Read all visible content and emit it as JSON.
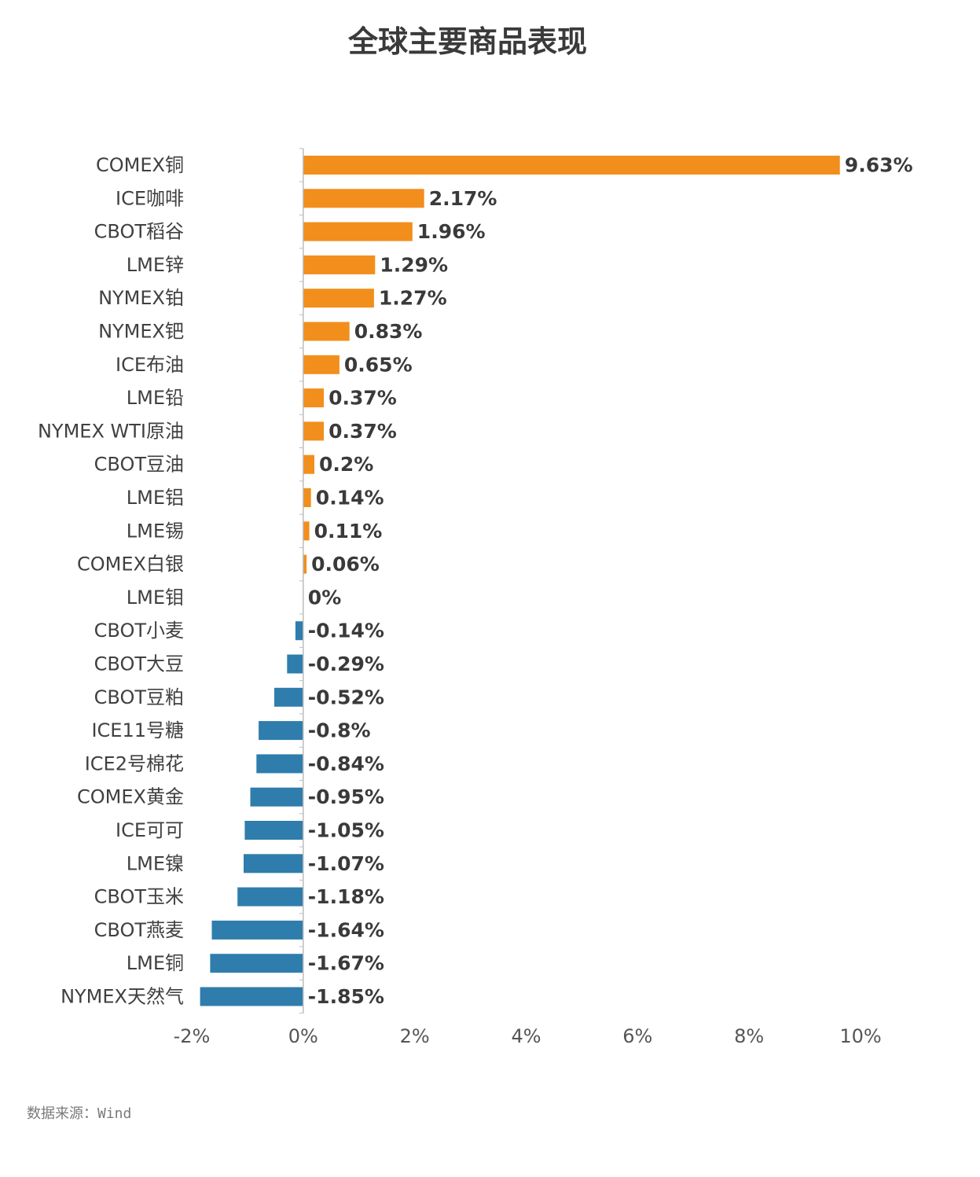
{
  "title": "全球主要商品表现",
  "source": "数据来源：Wind",
  "chart_data": {
    "type": "bar",
    "orientation": "horizontal",
    "title": "全球主要商品表现",
    "xlim": [
      -2,
      10
    ],
    "x_ticks": [
      -2,
      0,
      2,
      4,
      6,
      8,
      10
    ],
    "x_tick_labels": [
      "-2%",
      "0%",
      "2%",
      "4%",
      "6%",
      "8%",
      "10%"
    ],
    "colors": {
      "positive": "#f28e1c",
      "negative": "#2e7dac"
    },
    "categories": [
      "COMEX铜",
      "ICE咖啡",
      "CBOT稻谷",
      "LME锌",
      "NYMEX铂",
      "NYMEX钯",
      "ICE布油",
      "LME铅",
      "NYMEX WTI原油",
      "CBOT豆油",
      "LME铝",
      "LME锡",
      "COMEX白银",
      "LME钼",
      "CBOT小麦",
      "CBOT大豆",
      "CBOT豆粕",
      "ICE11号糖",
      "ICE2号棉花",
      "COMEX黄金",
      "ICE可可",
      "LME镍",
      "CBOT玉米",
      "CBOT燕麦",
      "LME铜",
      "NYMEX天然气"
    ],
    "values": [
      9.63,
      2.17,
      1.96,
      1.29,
      1.27,
      0.83,
      0.65,
      0.37,
      0.37,
      0.2,
      0.14,
      0.11,
      0.06,
      0,
      -0.14,
      -0.29,
      -0.52,
      -0.8,
      -0.84,
      -0.95,
      -1.05,
      -1.07,
      -1.18,
      -1.64,
      -1.67,
      -1.85
    ],
    "value_labels": [
      "9.63%",
      "2.17%",
      "1.96%",
      "1.29%",
      "1.27%",
      "0.83%",
      "0.65%",
      "0.37%",
      "0.37%",
      "0.2%",
      "0.14%",
      "0.11%",
      "0.06%",
      "0%",
      "-0.14%",
      "-0.29%",
      "-0.52%",
      "-0.8%",
      "-0.84%",
      "-0.95%",
      "-1.05%",
      "-1.07%",
      "-1.18%",
      "-1.64%",
      "-1.67%",
      "-1.85%"
    ]
  }
}
